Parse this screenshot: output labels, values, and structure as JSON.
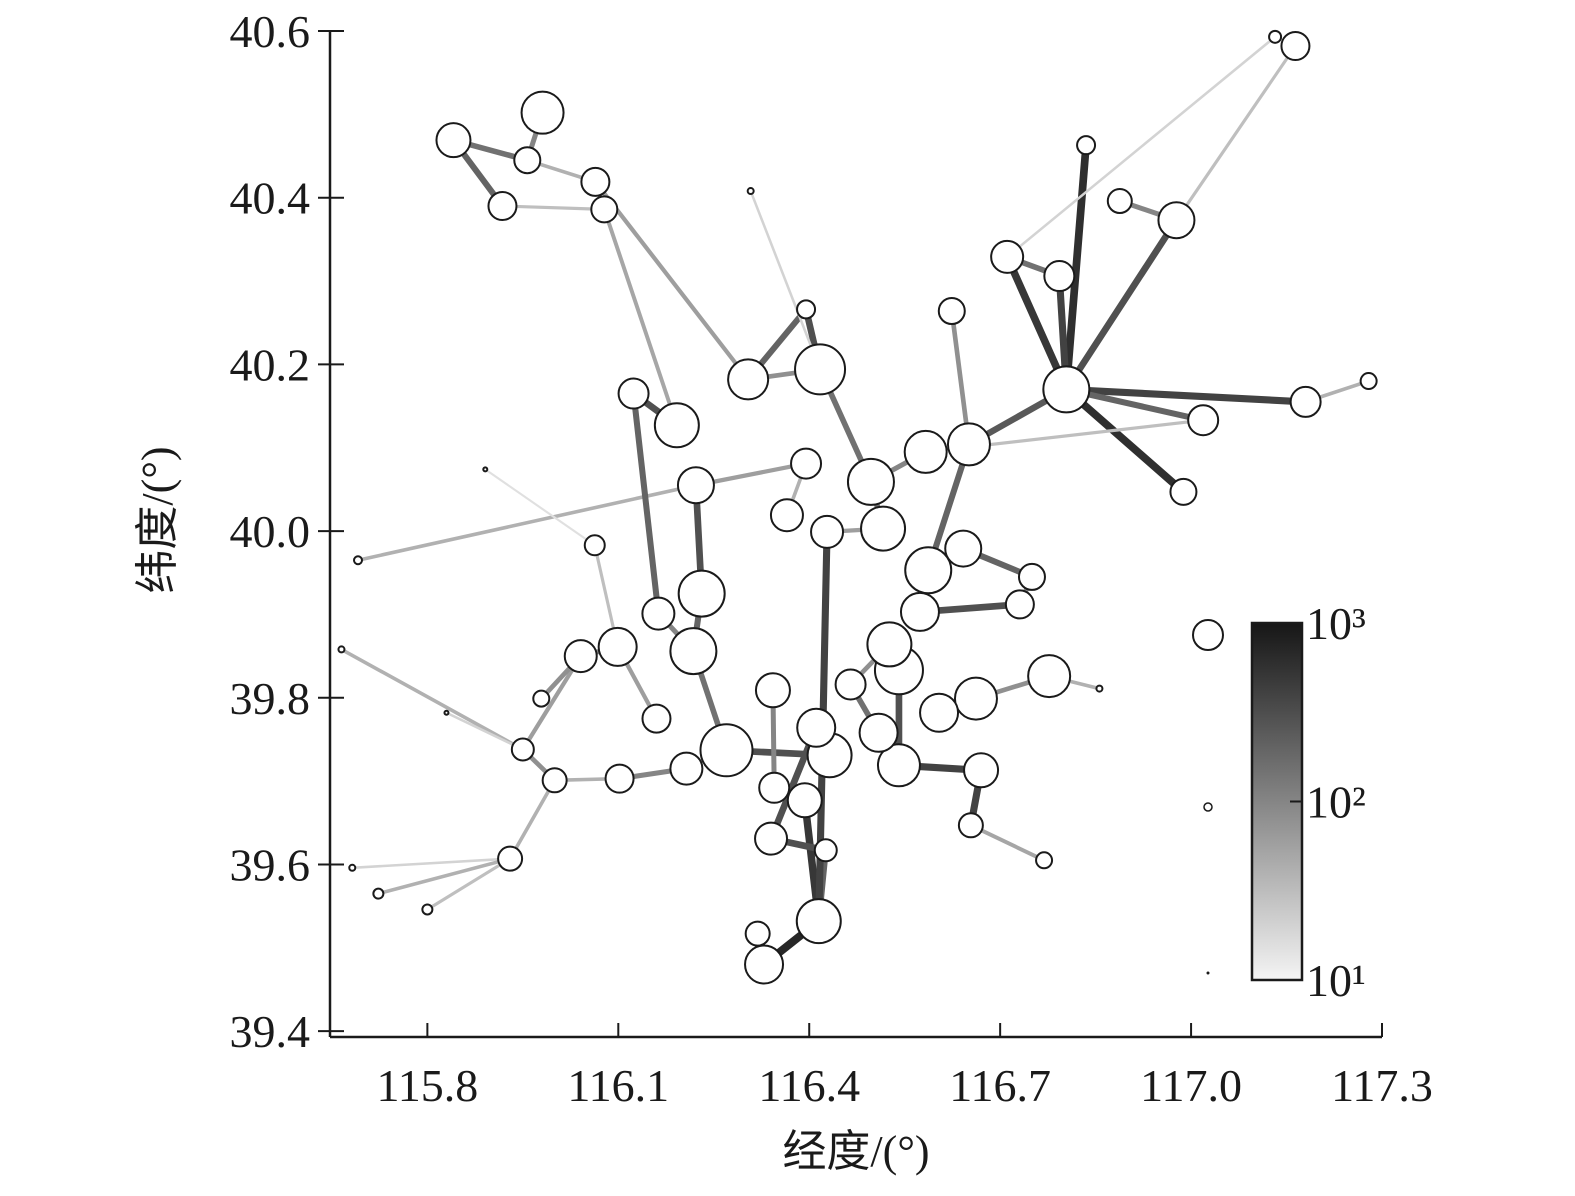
{
  "chart_data": {
    "type": "network",
    "x_label": "经度/(°)",
    "y_label": "纬度/(°)",
    "xlim": [
      115.647,
      117.3
    ],
    "ylim": [
      39.393,
      40.6
    ],
    "xticks": [
      115.8,
      116.1,
      116.4,
      116.7,
      {
        "value": 117,
        "label": "117.0"
      },
      117.3
    ],
    "yticks": [
      39.4,
      39.6,
      39.8,
      {
        "value": 40,
        "label": "40.0"
      },
      40.2,
      40.4,
      40.6
    ],
    "node_color": "#ffffff",
    "node_edge_color": "#1a1a1a",
    "colormap": [
      "#f4f4f4",
      "#161616"
    ],
    "colorbar": {
      "scale": "log",
      "lim": [
        10,
        1000
      ],
      "ticks": [
        {
          "value": 10,
          "label": "10¹"
        },
        {
          "value": 100,
          "label": "10²"
        },
        {
          "value": 1000,
          "label": "10³"
        }
      ]
    },
    "nodes": {
      "x": [
        115.841,
        115.981,
        115.918,
        115.957,
        116.064,
        116.078,
        116.804,
        116.977,
        117.164,
        117.18,
        117.279,
        116.417,
        116.304,
        116.192,
        116.222,
        116.124,
        116.711,
        116.793,
        116.624,
        116.835,
        116.888,
        117.019,
        116.988,
        116.75,
        116.777,
        116.731,
        116.662,
        116.67,
        116.651,
        116.583,
        116.497,
        116.516,
        116.428,
        116.365,
        116.395,
        116.642,
        116.587,
        116.574,
        116.541,
        116.526,
        116.604,
        116.541,
        116.509,
        116.432,
        116.411,
        116.27,
        116.343,
        116.465,
        116.231,
        116.218,
        116.099,
        116.041,
        116.163,
        116.16,
        116.207,
        116.102,
        116.0,
        115.95,
        115.93,
        116.34,
        116.345,
        116.393,
        116.415,
        116.329,
        116.319,
        116.426,
        116.654,
        116.769,
        115.691,
        115.665,
        115.682,
        115.723,
        115.8,
        115.891,
        116.308,
        115.83,
        116.395,
        116.063,
        115.979,
        116.856,
        117.132
      ],
      "y": [
        40.469,
        40.502,
        40.39,
        40.445,
        40.419,
        40.386,
        40.17,
        40.373,
        40.582,
        40.155,
        40.18,
        40.194,
        40.182,
        40.127,
        40.055,
        40.165,
        40.329,
        40.306,
        40.264,
        40.463,
        40.396,
        40.133,
        40.047,
        39.945,
        39.826,
        39.912,
        39.799,
        39.713,
        40.104,
        40.095,
        40.059,
        40.003,
        39.999,
        40.019,
        40.081,
        39.979,
        39.953,
        39.903,
        39.833,
        39.864,
        39.782,
        39.719,
        39.758,
        39.731,
        39.764,
        39.737,
        39.809,
        39.816,
        39.925,
        39.856,
        39.861,
        39.85,
        39.901,
        39.775,
        39.715,
        39.703,
        39.701,
        39.738,
        39.607,
        39.631,
        39.692,
        39.677,
        39.532,
        39.48,
        39.517,
        39.617,
        39.647,
        39.605,
        39.965,
        39.858,
        39.596,
        39.565,
        39.546,
        40.074,
        40.408,
        39.782,
        40.266,
        39.983,
        39.799,
        39.811,
        40.593
      ],
      "size": [
        17,
        21,
        14,
        13,
        14,
        13,
        23,
        18,
        14,
        15,
        8,
        25,
        20,
        22,
        18,
        15,
        16,
        15,
        13,
        9,
        12,
        15,
        13,
        13,
        21,
        14,
        21,
        17,
        21,
        21,
        23,
        22,
        16,
        16,
        15,
        18,
        23,
        19,
        24,
        22,
        19,
        21,
        19,
        22,
        19,
        26,
        17,
        15,
        23,
        23,
        19,
        16,
        16,
        14,
        16,
        14,
        12,
        11,
        12,
        16,
        15,
        17,
        22,
        19,
        12,
        11,
        12,
        8,
        4,
        3,
        3,
        5,
        5,
        2,
        3,
        2,
        9,
        10,
        8,
        3,
        6
      ]
    },
    "edges": {
      "source": [
        0,
        0,
        2,
        1,
        3,
        4,
        5,
        13,
        12,
        11,
        12,
        16,
        19,
        20,
        7,
        6,
        6,
        6,
        9,
        8,
        80,
        74,
        17,
        18,
        28,
        29,
        30,
        31,
        33,
        14,
        48,
        49,
        45,
        43,
        38,
        38,
        41,
        40,
        26,
        24,
        25,
        36,
        37,
        47,
        46,
        60,
        61,
        62,
        63,
        59,
        65,
        27,
        66,
        50,
        51,
        57,
        56,
        55,
        53,
        58,
        68,
        69,
        70,
        71,
        72,
        73,
        75,
        77,
        78,
        35,
        28,
        32,
        15,
        52,
        11,
        29,
        44,
        39,
        34,
        17
      ],
      "target": [
        2,
        3,
        5,
        3,
        4,
        12,
        13,
        15,
        11,
        76,
        76,
        6,
        6,
        7,
        6,
        9,
        22,
        21,
        10,
        7,
        16,
        11,
        16,
        28,
        36,
        30,
        31,
        32,
        34,
        48,
        49,
        45,
        43,
        44,
        39,
        41,
        27,
        26,
        24,
        79,
        23,
        37,
        25,
        42,
        60,
        61,
        62,
        63,
        64,
        65,
        62,
        66,
        67,
        51,
        57,
        56,
        55,
        54,
        50,
        56,
        14,
        57,
        58,
        58,
        58,
        77,
        57,
        50,
        51,
        23,
        6,
        62,
        52,
        49,
        30,
        21,
        59,
        47,
        14,
        6
      ],
      "weight": [
        200,
        150,
        30,
        100,
        40,
        60,
        50,
        300,
        80,
        300,
        200,
        500,
        600,
        100,
        300,
        400,
        600,
        200,
        40,
        30,
        20,
        20,
        150,
        80,
        200,
        100,
        150,
        60,
        40,
        300,
        200,
        150,
        300,
        100,
        200,
        300,
        400,
        200,
        80,
        40,
        100,
        200,
        300,
        150,
        100,
        200,
        500,
        700,
        100,
        300,
        200,
        400,
        50,
        100,
        60,
        80,
        40,
        100,
        60,
        40,
        40,
        40,
        20,
        40,
        30,
        15,
        20,
        30,
        80,
        200,
        250,
        400,
        200,
        100,
        150,
        30,
        300,
        80,
        60,
        400
      ]
    }
  }
}
